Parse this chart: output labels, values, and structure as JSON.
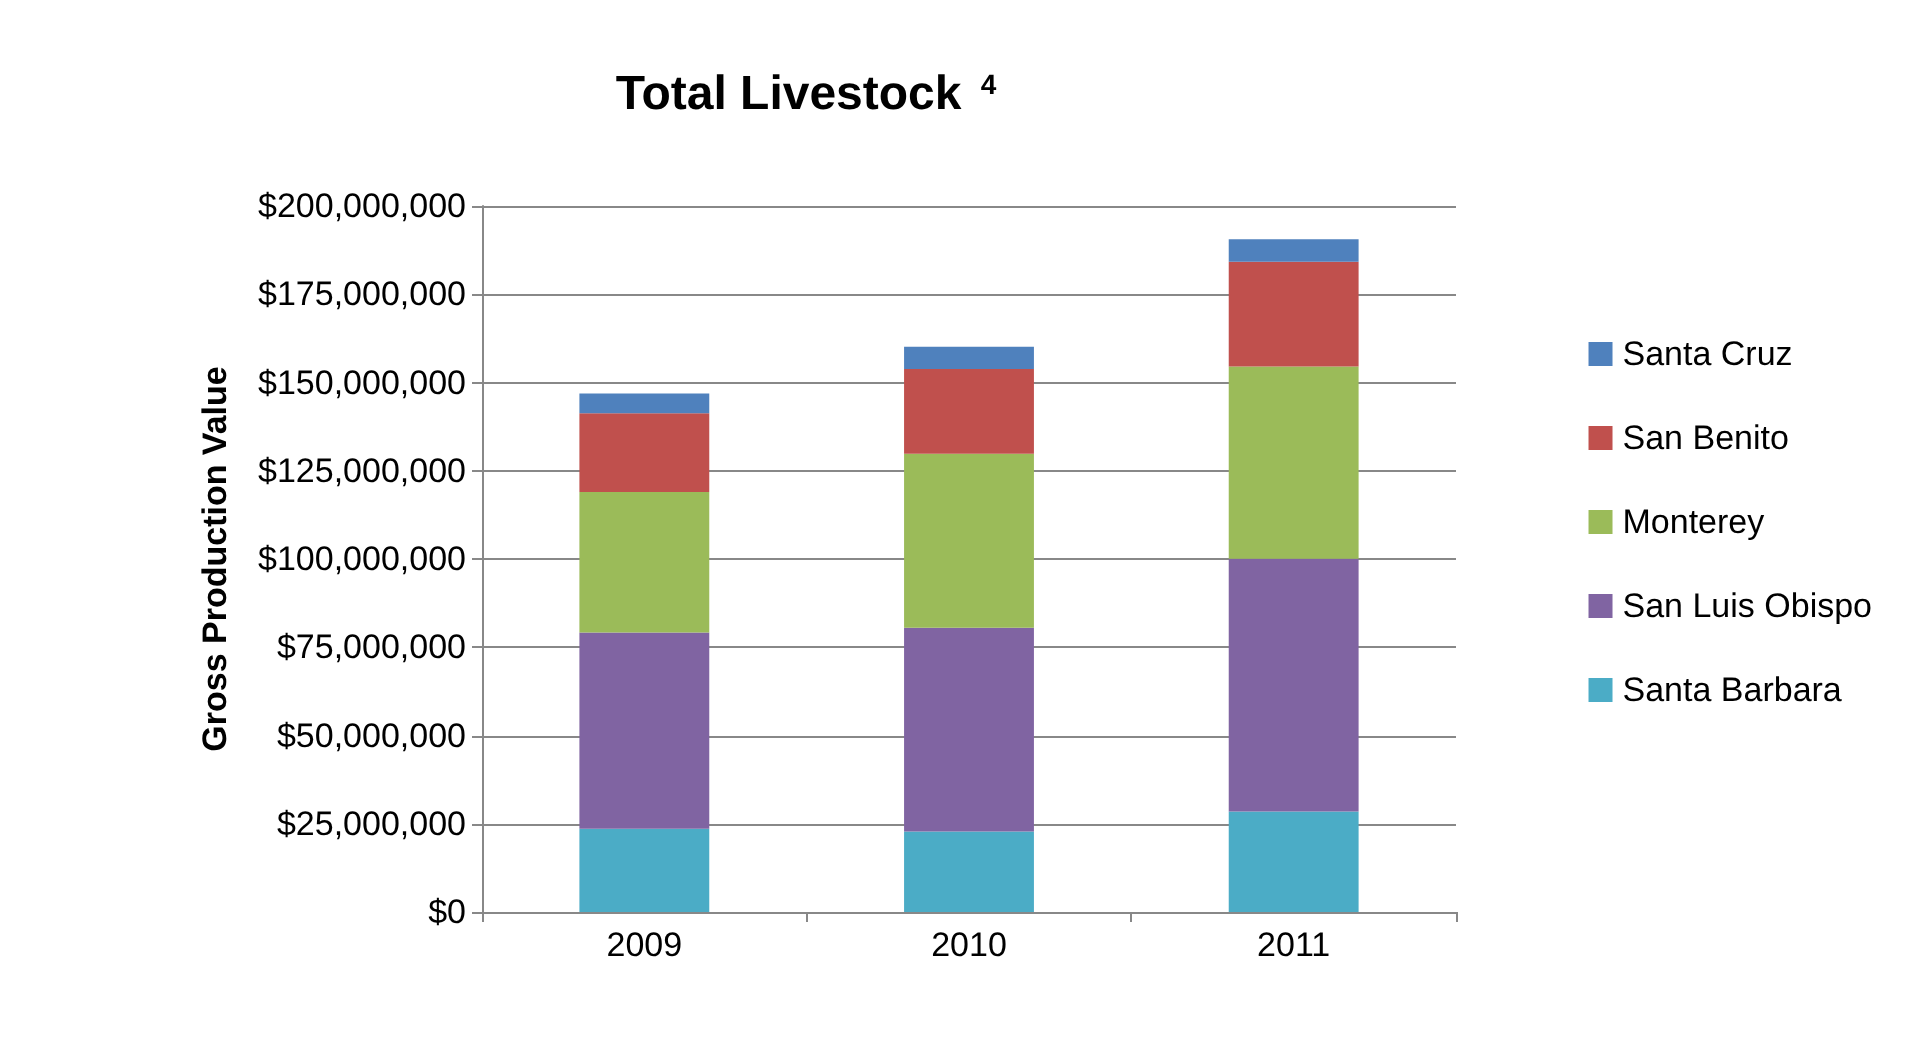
{
  "chart_data": {
    "type": "bar",
    "stacked": true,
    "title": "Total Livestock $^{4}$",
    "ylabel": "Gross Production Value",
    "categories": [
      "2009",
      "2010",
      "2011"
    ],
    "series": [
      {
        "name": "Santa Barbara",
        "color": "#4bacc6",
        "values": [
          23600000,
          22800000,
          28500000
        ]
      },
      {
        "name": "San Luis Obispo",
        "color": "#8064a2",
        "values": [
          55600000,
          57700000,
          71600000
        ]
      },
      {
        "name": "Monterey",
        "color": "#9bbb59",
        "values": [
          39800000,
          49300000,
          54400000
        ]
      },
      {
        "name": "San Benito",
        "color": "#c0504d",
        "values": [
          22300000,
          24000000,
          29700000
        ]
      },
      {
        "name": "Santa Cruz",
        "color": "#4f81bd",
        "values": [
          5600000,
          6300000,
          6400000
        ]
      }
    ],
    "ylim": [
      0,
      200000000
    ],
    "yticks": [
      {
        "value": 0,
        "label": "$0"
      },
      {
        "value": 25000000,
        "label": "$25,000,000"
      },
      {
        "value": 50000000,
        "label": "$50,000,000"
      },
      {
        "value": 75000000,
        "label": "$75,000,000"
      },
      {
        "value": 100000000,
        "label": "$100,000,000"
      },
      {
        "value": 125000000,
        "label": "$125,000,000"
      },
      {
        "value": 150000000,
        "label": "$150,000,000"
      },
      {
        "value": 175000000,
        "label": "$175,000,000"
      },
      {
        "value": 200000000,
        "label": "$200,000,000"
      }
    ],
    "grid": "y",
    "legend": "right"
  }
}
